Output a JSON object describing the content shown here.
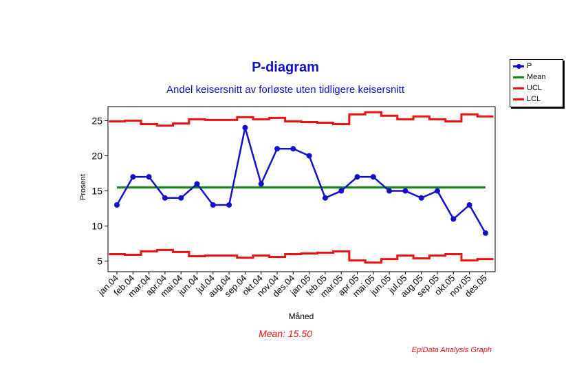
{
  "chart_data": {
    "type": "line",
    "title": "P-diagram",
    "subtitle": "Andel keisersnitt av forløste uten tidligere keisersnitt",
    "xlabel": "Måned",
    "ylabel": "Prosent",
    "ylim": [
      3.5,
      27
    ],
    "yticks": [
      5,
      10,
      15,
      20,
      25
    ],
    "categories": [
      "jan.04",
      "feb.04",
      "mar.04",
      "apr.04",
      "mai.04",
      "jun.04",
      "jul.04",
      "aug.04",
      "sep.04",
      "okt.04",
      "nov.04",
      "des.04",
      "jan.05",
      "feb.05",
      "mar.05",
      "apr.05",
      "mai.05",
      "jun.05",
      "jul.05",
      "aug.05",
      "sep.05",
      "okt.05",
      "nov.05",
      "des.05"
    ],
    "series": [
      {
        "name": "P",
        "type": "line",
        "color": "#1010c8",
        "markers": true,
        "values": [
          13,
          17,
          17,
          14,
          14,
          16,
          13,
          13,
          24,
          16,
          21,
          21,
          20,
          14,
          15,
          17,
          17,
          15,
          15,
          14,
          15,
          11,
          13,
          9
        ]
      },
      {
        "name": "Mean",
        "type": "line",
        "color": "#118811",
        "values": [
          15.5,
          15.5,
          15.5,
          15.5,
          15.5,
          15.5,
          15.5,
          15.5,
          15.5,
          15.5,
          15.5,
          15.5,
          15.5,
          15.5,
          15.5,
          15.5,
          15.5,
          15.5,
          15.5,
          15.5,
          15.5,
          15.5,
          15.5,
          15.5
        ]
      },
      {
        "name": "UCL",
        "type": "step",
        "color": "#ee1111",
        "values": [
          24.9,
          25.0,
          24.5,
          24.3,
          24.6,
          25.2,
          25.1,
          25.1,
          25.5,
          25.2,
          25.4,
          24.9,
          24.8,
          24.7,
          24.5,
          25.9,
          26.2,
          25.7,
          25.2,
          25.6,
          25.2,
          24.9,
          25.9,
          25.6
        ]
      },
      {
        "name": "LCL",
        "type": "step",
        "color": "#ee1111",
        "values": [
          6.0,
          5.9,
          6.4,
          6.6,
          6.3,
          5.7,
          5.8,
          5.8,
          5.5,
          5.8,
          5.6,
          6.0,
          6.1,
          6.2,
          6.4,
          5.1,
          4.8,
          5.3,
          5.8,
          5.4,
          5.8,
          6.0,
          5.1,
          5.3
        ]
      }
    ],
    "legend_position": "top-right",
    "grid": false
  },
  "annotations": {
    "mean_text": "Mean: 15.50",
    "footer": "EpiData Analysis Graph"
  },
  "legend": {
    "items": [
      {
        "label": "P",
        "color": "#1010c8",
        "marker": true
      },
      {
        "label": "Mean",
        "color": "#118811",
        "marker": false
      },
      {
        "label": "UCL",
        "color": "#ee1111",
        "marker": false
      },
      {
        "label": "LCL",
        "color": "#ee1111",
        "marker": false
      }
    ]
  }
}
